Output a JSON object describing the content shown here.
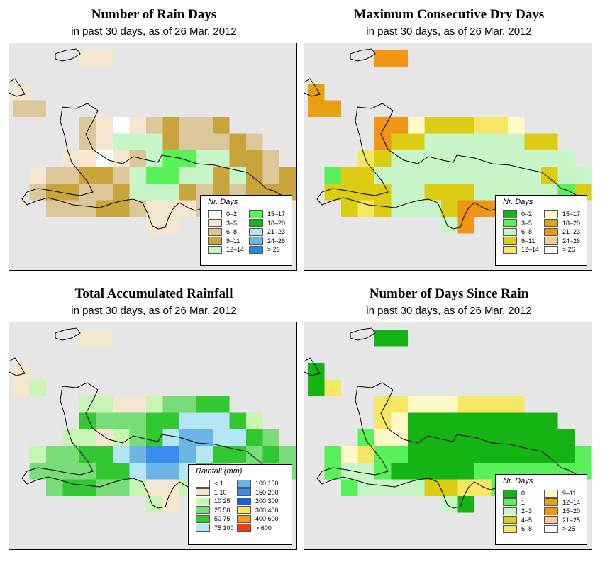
{
  "panels": [
    {
      "title": "Number of Rain Days",
      "subtitle": "in past 30 days, as of  26 Mar. 2012",
      "legend_title": "Nr. Days",
      "legend": [
        {
          "label": "0–2",
          "color": "#ffffff"
        },
        {
          "label": "3–5",
          "color": "#f5e6cf"
        },
        {
          "label": "6–8",
          "color": "#dcc79a"
        },
        {
          "label": "9–11",
          "color": "#c9a43a"
        },
        {
          "label": "12–14",
          "color": "#c8f5c8"
        },
        {
          "label": "15–17",
          "color": "#5af05a"
        },
        {
          "label": "18–20",
          "color": "#19b419"
        },
        {
          "label": "21–23",
          "color": "#b4e6f5"
        },
        {
          "label": "24–26",
          "color": "#6ab4e6"
        },
        {
          "label": "> 26",
          "color": "#1e8ce6"
        }
      ]
    },
    {
      "title": "Maximum Consecutive Dry Days",
      "subtitle": "in past 30 days, as of  26 Mar. 2012",
      "legend_title": "Nr. Days",
      "legend": [
        {
          "label": "0–2",
          "color": "#14b414"
        },
        {
          "label": "3–5",
          "color": "#5af05a"
        },
        {
          "label": "6–8",
          "color": "#c8f5c8"
        },
        {
          "label": "9–11",
          "color": "#dccd14"
        },
        {
          "label": "12–14",
          "color": "#f5e664"
        },
        {
          "label": "15–17",
          "color": "#fffac8"
        },
        {
          "label": "18–20",
          "color": "#e6a014"
        },
        {
          "label": "21–23",
          "color": "#f09614"
        },
        {
          "label": "24–26",
          "color": "#f5c8a0"
        },
        {
          "label": "> 26",
          "color": "#ffffff"
        }
      ]
    },
    {
      "title": "Total Accumulated Rainfall",
      "subtitle": "in past 30 days, as of  26 Mar. 2012",
      "legend_title": "Rainfall (mm)",
      "legend": [
        {
          "label": "< 1",
          "color": "#ffffff"
        },
        {
          "label": "1   10",
          "color": "#f5e6cf"
        },
        {
          "label": "10   25",
          "color": "#c8f5b4"
        },
        {
          "label": "25   50",
          "color": "#78dc78"
        },
        {
          "label": "50   75",
          "color": "#32c832"
        },
        {
          "label": "75  100",
          "color": "#b4e6f5"
        },
        {
          "label": "100  150",
          "color": "#6ab4e6"
        },
        {
          "label": "150  200",
          "color": "#3c8cf0"
        },
        {
          "label": "200  300",
          "color": "#1e5adc"
        },
        {
          "label": "300  400",
          "color": "#f5e664"
        },
        {
          "label": "400  600",
          "color": "#f5a014"
        },
        {
          "label": "> 600",
          "color": "#f53c14"
        }
      ]
    },
    {
      "title": "Number of Days Since Rain",
      "subtitle": "in past 30 days, as of  26 Mar. 2012",
      "legend_title": "Nr. Days",
      "legend": [
        {
          "label": "0",
          "color": "#14b414"
        },
        {
          "label": "1",
          "color": "#5af05a"
        },
        {
          "label": "2–3",
          "color": "#c8f5c8"
        },
        {
          "label": "4–5",
          "color": "#dccd14"
        },
        {
          "label": "6–8",
          "color": "#f5e664"
        },
        {
          "label": "9–11",
          "color": "#fffac8"
        },
        {
          "label": "12–14",
          "color": "#e6a014"
        },
        {
          "label": "15–20",
          "color": "#f09614"
        },
        {
          "label": "21–25",
          "color": "#f5c8a0"
        },
        {
          "label": "> 25",
          "color": "#ffffff"
        }
      ]
    }
  ]
}
